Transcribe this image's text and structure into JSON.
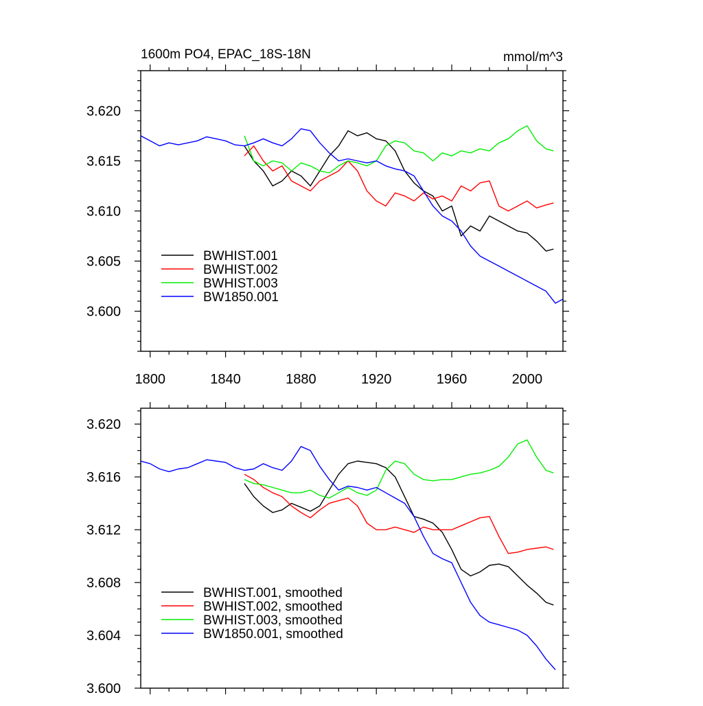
{
  "chart_data": [
    {
      "type": "line",
      "title": "1600m PO4, EPAC_18S-18N",
      "units": "mmol/m^3",
      "xlabel": "",
      "ylabel": "",
      "xlim": [
        1795,
        2019
      ],
      "ylim": [
        3.596,
        3.624
      ],
      "xticks": [
        1800,
        1840,
        1880,
        1920,
        1960,
        2000
      ],
      "xtick_labels": [
        "1800",
        "1840",
        "1880",
        "1920",
        "1960",
        "2000"
      ],
      "yticks": [
        3.6,
        3.605,
        3.61,
        3.615,
        3.62
      ],
      "ytick_labels": [
        "3.600",
        "3.605",
        "3.610",
        "3.615",
        "3.620"
      ],
      "legend_position": "bottom-left",
      "series": [
        {
          "name": "BWHIST.001",
          "color": "#000000",
          "x": [
            1850,
            1855,
            1860,
            1865,
            1870,
            1875,
            1880,
            1885,
            1890,
            1895,
            1900,
            1905,
            1910,
            1915,
            1920,
            1925,
            1930,
            1935,
            1940,
            1945,
            1950,
            1955,
            1960,
            1965,
            1970,
            1975,
            1980,
            1985,
            1990,
            1995,
            2000,
            2005,
            2010,
            2014
          ],
          "y": [
            3.6165,
            3.615,
            3.614,
            3.6125,
            3.613,
            3.614,
            3.6135,
            3.6125,
            3.614,
            3.6155,
            3.6165,
            3.618,
            3.6175,
            3.6178,
            3.6172,
            3.617,
            3.616,
            3.614,
            3.6128,
            3.612,
            3.6115,
            3.61,
            3.6105,
            3.6075,
            3.6085,
            3.608,
            3.6095,
            3.609,
            3.6085,
            3.608,
            3.6078,
            3.607,
            3.606,
            3.6062
          ]
        },
        {
          "name": "BWHIST.002",
          "color": "#ff0000",
          "x": [
            1850,
            1855,
            1860,
            1865,
            1870,
            1875,
            1880,
            1885,
            1890,
            1895,
            1900,
            1905,
            1910,
            1915,
            1920,
            1925,
            1930,
            1935,
            1940,
            1945,
            1950,
            1955,
            1960,
            1965,
            1970,
            1975,
            1980,
            1985,
            1990,
            1995,
            2000,
            2005,
            2010,
            2014
          ],
          "y": [
            3.6155,
            3.6165,
            3.615,
            3.614,
            3.6145,
            3.613,
            3.6125,
            3.612,
            3.613,
            3.6135,
            3.614,
            3.615,
            3.614,
            3.612,
            3.611,
            3.6105,
            3.6118,
            3.6115,
            3.611,
            3.6118,
            3.6112,
            3.6115,
            3.611,
            3.6125,
            3.612,
            3.6128,
            3.613,
            3.6105,
            3.61,
            3.6105,
            3.611,
            3.6103,
            3.6106,
            3.6108
          ]
        },
        {
          "name": "BWHIST.003",
          "color": "#00ee00",
          "x": [
            1850,
            1855,
            1860,
            1865,
            1870,
            1875,
            1880,
            1885,
            1890,
            1895,
            1900,
            1905,
            1910,
            1915,
            1920,
            1925,
            1930,
            1935,
            1940,
            1945,
            1950,
            1955,
            1960,
            1965,
            1970,
            1975,
            1980,
            1985,
            1990,
            1995,
            2000,
            2005,
            2010,
            2014
          ],
          "y": [
            3.6175,
            3.615,
            3.6145,
            3.615,
            3.6148,
            3.614,
            3.6148,
            3.6145,
            3.614,
            3.6138,
            3.6145,
            3.615,
            3.6148,
            3.6145,
            3.615,
            3.6165,
            3.617,
            3.6168,
            3.616,
            3.6158,
            3.615,
            3.6158,
            3.6155,
            3.616,
            3.6158,
            3.6162,
            3.616,
            3.6168,
            3.6172,
            3.618,
            3.6185,
            3.617,
            3.6162,
            3.616
          ]
        },
        {
          "name": "BW1850.001",
          "color": "#0000ff",
          "x": [
            1795,
            1800,
            1805,
            1810,
            1815,
            1820,
            1825,
            1830,
            1835,
            1840,
            1845,
            1850,
            1855,
            1860,
            1865,
            1870,
            1875,
            1880,
            1885,
            1890,
            1895,
            1900,
            1905,
            1910,
            1915,
            1920,
            1925,
            1930,
            1935,
            1940,
            1945,
            1950,
            1955,
            1960,
            1965,
            1970,
            1975,
            1980,
            1985,
            1990,
            1995,
            2000,
            2005,
            2010,
            2015,
            2019
          ],
          "y": [
            3.6175,
            3.617,
            3.6165,
            3.6168,
            3.6166,
            3.6168,
            3.617,
            3.6174,
            3.6172,
            3.617,
            3.6166,
            3.6165,
            3.6168,
            3.6172,
            3.6168,
            3.6165,
            3.6172,
            3.6182,
            3.618,
            3.6168,
            3.6158,
            3.615,
            3.6152,
            3.615,
            3.6148,
            3.615,
            3.6145,
            3.6142,
            3.614,
            3.6135,
            3.612,
            3.6105,
            3.6095,
            3.609,
            3.608,
            3.6065,
            3.6055,
            3.605,
            3.6045,
            3.604,
            3.6035,
            3.603,
            3.6025,
            3.602,
            3.6008,
            3.6012
          ]
        }
      ]
    },
    {
      "type": "line",
      "title": "",
      "xlabel": "",
      "ylabel": "",
      "xlim": [
        1795,
        2019
      ],
      "ylim": [
        3.6,
        3.6212
      ],
      "xticks": [
        1800,
        1840,
        1880,
        1920,
        1960,
        2000
      ],
      "yticks": [
        3.6,
        3.604,
        3.608,
        3.612,
        3.616,
        3.62
      ],
      "ytick_labels": [
        "3.600",
        "3.604",
        "3.608",
        "3.612",
        "3.616",
        "3.620"
      ],
      "legend_position": "bottom-left",
      "series": [
        {
          "name": "BWHIST.001, smoothed",
          "color": "#000000",
          "x": [
            1850,
            1855,
            1860,
            1865,
            1870,
            1875,
            1880,
            1885,
            1890,
            1895,
            1900,
            1905,
            1910,
            1915,
            1920,
            1925,
            1930,
            1935,
            1940,
            1945,
            1950,
            1955,
            1960,
            1965,
            1970,
            1975,
            1980,
            1985,
            1990,
            1995,
            2000,
            2005,
            2010,
            2014
          ],
          "y": [
            3.6155,
            3.6145,
            3.6138,
            3.6133,
            3.6135,
            3.614,
            3.6137,
            3.6134,
            3.6138,
            3.615,
            3.6162,
            3.617,
            3.6172,
            3.6171,
            3.617,
            3.6167,
            3.616,
            3.6145,
            3.613,
            3.6128,
            3.6125,
            3.6118,
            3.6105,
            3.609,
            3.6085,
            3.6088,
            3.6093,
            3.6094,
            3.6092,
            3.6085,
            3.6078,
            3.6072,
            3.6065,
            3.6063
          ]
        },
        {
          "name": "BWHIST.002, smoothed",
          "color": "#ff0000",
          "x": [
            1850,
            1855,
            1860,
            1865,
            1870,
            1875,
            1880,
            1885,
            1890,
            1895,
            1900,
            1905,
            1910,
            1915,
            1920,
            1925,
            1930,
            1935,
            1940,
            1945,
            1950,
            1955,
            1960,
            1965,
            1970,
            1975,
            1980,
            1985,
            1990,
            1995,
            2000,
            2005,
            2010,
            2014
          ],
          "y": [
            3.6162,
            3.6158,
            3.6152,
            3.6148,
            3.6145,
            3.6138,
            3.6133,
            3.6129,
            3.6135,
            3.614,
            3.6142,
            3.6144,
            3.6138,
            3.6125,
            3.612,
            3.612,
            3.6122,
            3.612,
            3.6118,
            3.6122,
            3.612,
            3.612,
            3.612,
            3.6123,
            3.6126,
            3.6129,
            3.613,
            3.6115,
            3.6102,
            3.6103,
            3.6105,
            3.6106,
            3.6107,
            3.6105
          ]
        },
        {
          "name": "BWHIST.003, smoothed",
          "color": "#00ee00",
          "x": [
            1850,
            1855,
            1860,
            1865,
            1870,
            1875,
            1880,
            1885,
            1890,
            1895,
            1900,
            1905,
            1910,
            1915,
            1920,
            1925,
            1930,
            1935,
            1940,
            1945,
            1950,
            1955,
            1960,
            1965,
            1970,
            1975,
            1980,
            1985,
            1990,
            1995,
            2000,
            2005,
            2010,
            2014
          ],
          "y": [
            3.6158,
            3.6155,
            3.6154,
            3.6152,
            3.615,
            3.6148,
            3.6148,
            3.615,
            3.6146,
            3.6144,
            3.6148,
            3.6152,
            3.6148,
            3.6146,
            3.615,
            3.6165,
            3.6172,
            3.617,
            3.6162,
            3.6158,
            3.6157,
            3.6158,
            3.6158,
            3.616,
            3.6162,
            3.6163,
            3.6165,
            3.6168,
            3.6175,
            3.6185,
            3.6188,
            3.6175,
            3.6165,
            3.6163
          ]
        },
        {
          "name": "BW1850.001, smoothed",
          "color": "#0000ff",
          "x": [
            1795,
            1800,
            1805,
            1810,
            1815,
            1820,
            1825,
            1830,
            1835,
            1840,
            1845,
            1850,
            1855,
            1860,
            1865,
            1870,
            1875,
            1880,
            1885,
            1890,
            1895,
            1900,
            1905,
            1910,
            1915,
            1920,
            1925,
            1930,
            1935,
            1940,
            1945,
            1950,
            1955,
            1960,
            1965,
            1970,
            1975,
            1980,
            1985,
            1990,
            1995,
            2000,
            2005,
            2010,
            2015
          ],
          "y": [
            3.6172,
            3.617,
            3.6166,
            3.6164,
            3.6166,
            3.6167,
            3.617,
            3.6173,
            3.6172,
            3.6171,
            3.6167,
            3.6165,
            3.6166,
            3.617,
            3.6167,
            3.6165,
            3.6172,
            3.6183,
            3.618,
            3.6168,
            3.6158,
            3.615,
            3.6153,
            3.6152,
            3.615,
            3.6152,
            3.6148,
            3.6144,
            3.614,
            3.613,
            3.6115,
            3.6102,
            3.6098,
            3.6095,
            3.608,
            3.6065,
            3.6055,
            3.605,
            3.6048,
            3.6046,
            3.6044,
            3.604,
            3.6032,
            3.6022,
            3.6014
          ]
        }
      ]
    }
  ]
}
